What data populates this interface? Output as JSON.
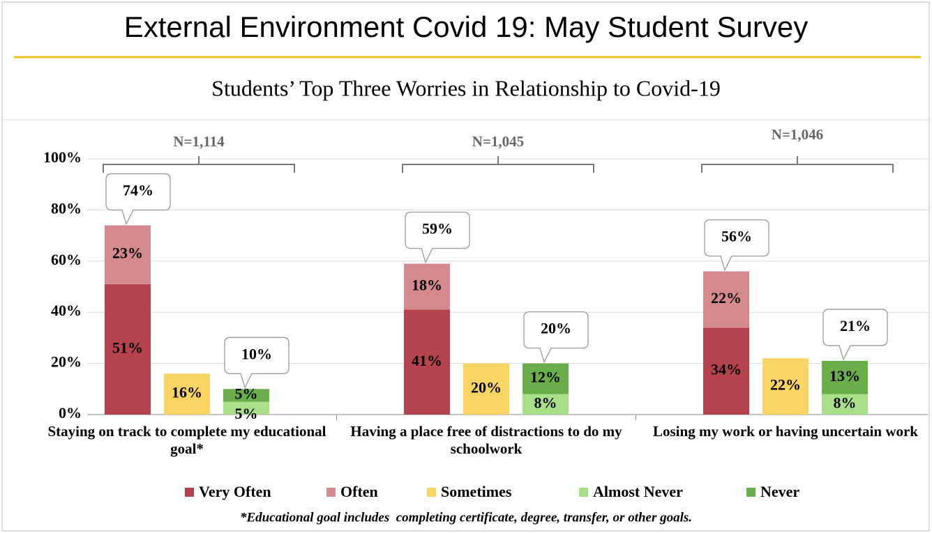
{
  "page_title": "External Environment Covid 19: May Student Survey",
  "chart_data": {
    "type": "bar",
    "title": "Students’ Top Three Worries in Relationship to Covid-19",
    "categories": [
      "Staying on track to complete my educational goal*",
      "Having a place free of distractions to do my schoolwork",
      "Losing my work or having uncertain work"
    ],
    "group_labels": [
      "N=1,114",
      "N=1,045",
      "N=1,046"
    ],
    "series": [
      {
        "name": "Very Often",
        "color": "#b5434f",
        "values": [
          51,
          41,
          34
        ],
        "value_labels": [
          "51%",
          "41%",
          "34%"
        ]
      },
      {
        "name": "Often",
        "color": "#d4898f",
        "values": [
          23,
          18,
          22
        ],
        "value_labels": [
          "23%",
          "18%",
          "22%"
        ]
      },
      {
        "name": "Sometimes",
        "color": "#f8d462",
        "values": [
          16,
          20,
          22
        ],
        "value_labels": [
          "16%",
          "20%",
          "22%"
        ]
      },
      {
        "name": "Almost Never",
        "color": "#a8e08a",
        "values": [
          5,
          8,
          8
        ],
        "value_labels": [
          "5%",
          "8%",
          "8%"
        ]
      },
      {
        "name": "Never",
        "color": "#6aae4c",
        "values": [
          5,
          12,
          13
        ],
        "value_labels": [
          "5%",
          "12%",
          "13%"
        ]
      }
    ],
    "upper_totals": [
      74,
      59,
      56
    ],
    "upper_total_labels": [
      "74%",
      "59%",
      "56%"
    ],
    "lower_totals": [
      10,
      20,
      21
    ],
    "lower_total_labels": [
      "10%",
      "20%",
      "21%"
    ],
    "ylim": [
      0,
      100
    ],
    "yticks": [
      {
        "value": 0,
        "label": "0%"
      },
      {
        "value": 20,
        "label": "20%"
      },
      {
        "value": 40,
        "label": "40%"
      },
      {
        "value": 60,
        "label": "60%"
      },
      {
        "value": 80,
        "label": "80%"
      },
      {
        "value": 100,
        "label": "100%"
      }
    ],
    "grid": true,
    "legend": "bottom",
    "footnote": "*Educational goal includes  completing certificate, degree, transfer, or other goals."
  }
}
